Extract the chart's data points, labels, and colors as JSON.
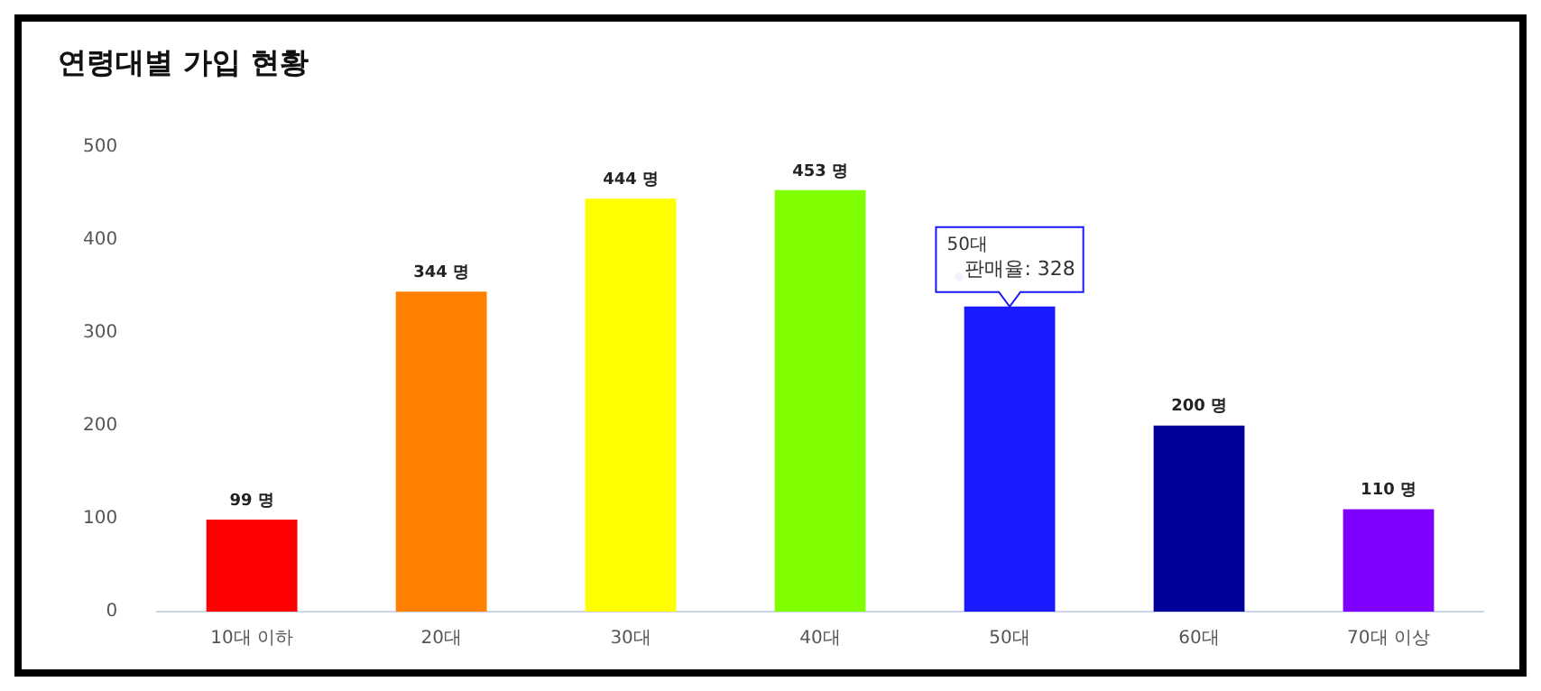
{
  "chart_data": {
    "type": "bar",
    "title": "연령대별 가입 현황",
    "categories": [
      "10대 이하",
      "20대",
      "30대",
      "40대",
      "50대",
      "60대",
      "70대 이상"
    ],
    "values": [
      99,
      344,
      444,
      453,
      328,
      200,
      110
    ],
    "colors": [
      "#ff0000",
      "#ff8000",
      "#ffff00",
      "#80ff00",
      "#1a1aff",
      "#000099",
      "#8000ff"
    ],
    "value_labels": [
      "99 명",
      "344 명",
      "444 명",
      "453 명",
      null,
      "200 명",
      "110 명"
    ],
    "ylim": [
      0,
      500
    ],
    "yticks": [
      0,
      100,
      200,
      300,
      400,
      500
    ],
    "grid": false,
    "legend": false,
    "annotations": [
      "50대",
      {
        "text": "판매율: 328",
        "x": "50대",
        "y": 328
      }
    ]
  }
}
